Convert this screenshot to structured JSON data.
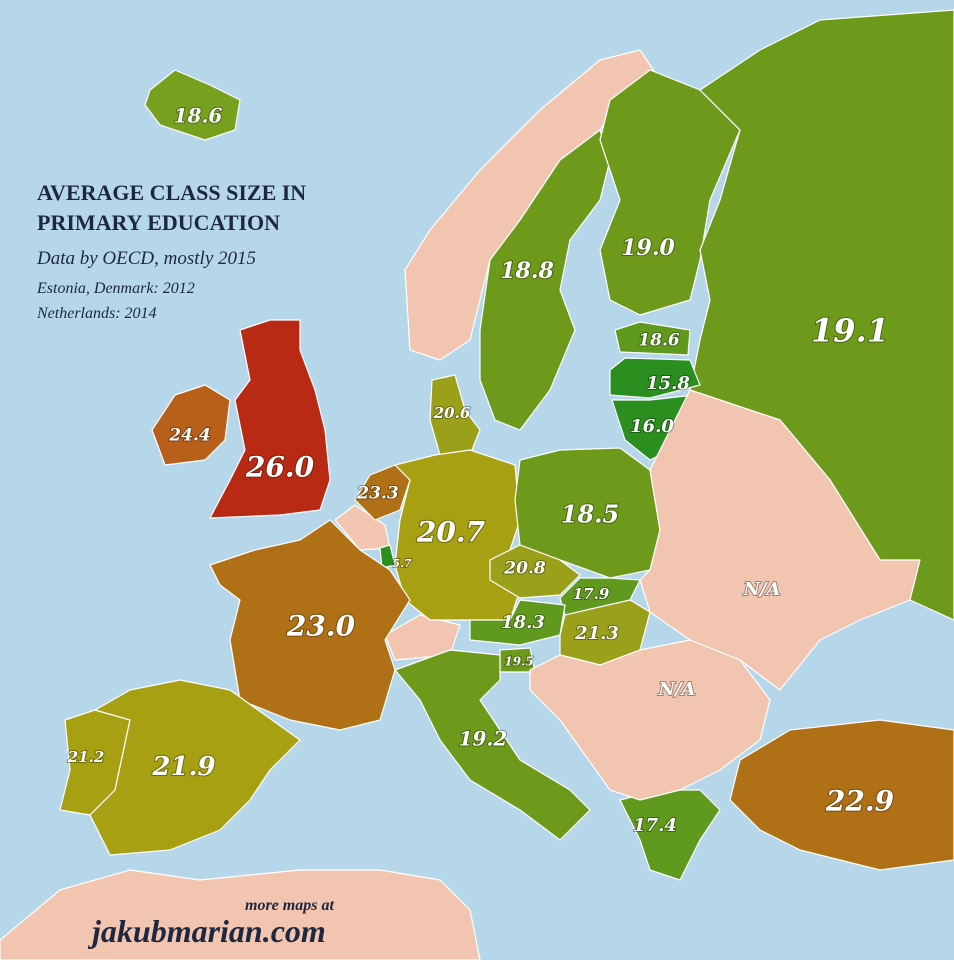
{
  "title": [
    "AVERAGE CLASS SIZE IN",
    "PRIMARY EDUCATION"
  ],
  "subtitle": "Data by OECD, mostly 2015",
  "notes": [
    "Estonia, Denmark: 2012",
    "Netherlands: 2014"
  ],
  "regions": [
    {
      "label": "18.6",
      "color": "#76a01e"
    },
    {
      "label": "18.8",
      "color": "#6e9a1c"
    },
    {
      "label": "19.0",
      "color": "#6e9a1c"
    },
    {
      "label": "19.1",
      "color": "#6e9a1c"
    },
    {
      "label": "18.6",
      "color": "#5f9a1e"
    },
    {
      "label": "15.8",
      "color": "#2a8f1e"
    },
    {
      "label": "16.0",
      "color": "#2a8f1e"
    },
    {
      "label": "20.6",
      "color": "#9aa01a"
    },
    {
      "label": "24.4",
      "color": "#b8601a"
    },
    {
      "label": "26.0",
      "color": "#b82a14"
    },
    {
      "label": "23.3",
      "color": "#b07016"
    },
    {
      "label": "20.7",
      "color": "#a6a012"
    },
    {
      "label": "18.5",
      "color": "#6e9a1c"
    },
    {
      "label": "5.7",
      "color": "#2a8f1e"
    },
    {
      "label": "20.8",
      "color": "#9aa01a"
    },
    {
      "label": "17.9",
      "color": "#5f9a1e"
    },
    {
      "label": "18.3",
      "color": "#5f9a1e"
    },
    {
      "label": "21.3",
      "color": "#9aa01a"
    },
    {
      "label": "19.5",
      "color": "#6e9a1c"
    },
    {
      "label": "23.0",
      "color": "#b07016"
    },
    {
      "label": "19.2",
      "color": "#6e9a1c"
    },
    {
      "label": "21.2",
      "color": "#a6a012"
    },
    {
      "label": "21.9",
      "color": "#a6a012"
    },
    {
      "label": "17.4",
      "color": "#5f9a1e"
    },
    {
      "label": "22.9",
      "color": "#b07016"
    },
    {
      "label": "N/A",
      "color": "#f2c5b0"
    },
    {
      "label": "N/A",
      "color": "#f2c5b0"
    }
  ],
  "footer": {
    "prefix": "more maps at",
    "site": "jakubmarian.com"
  }
}
